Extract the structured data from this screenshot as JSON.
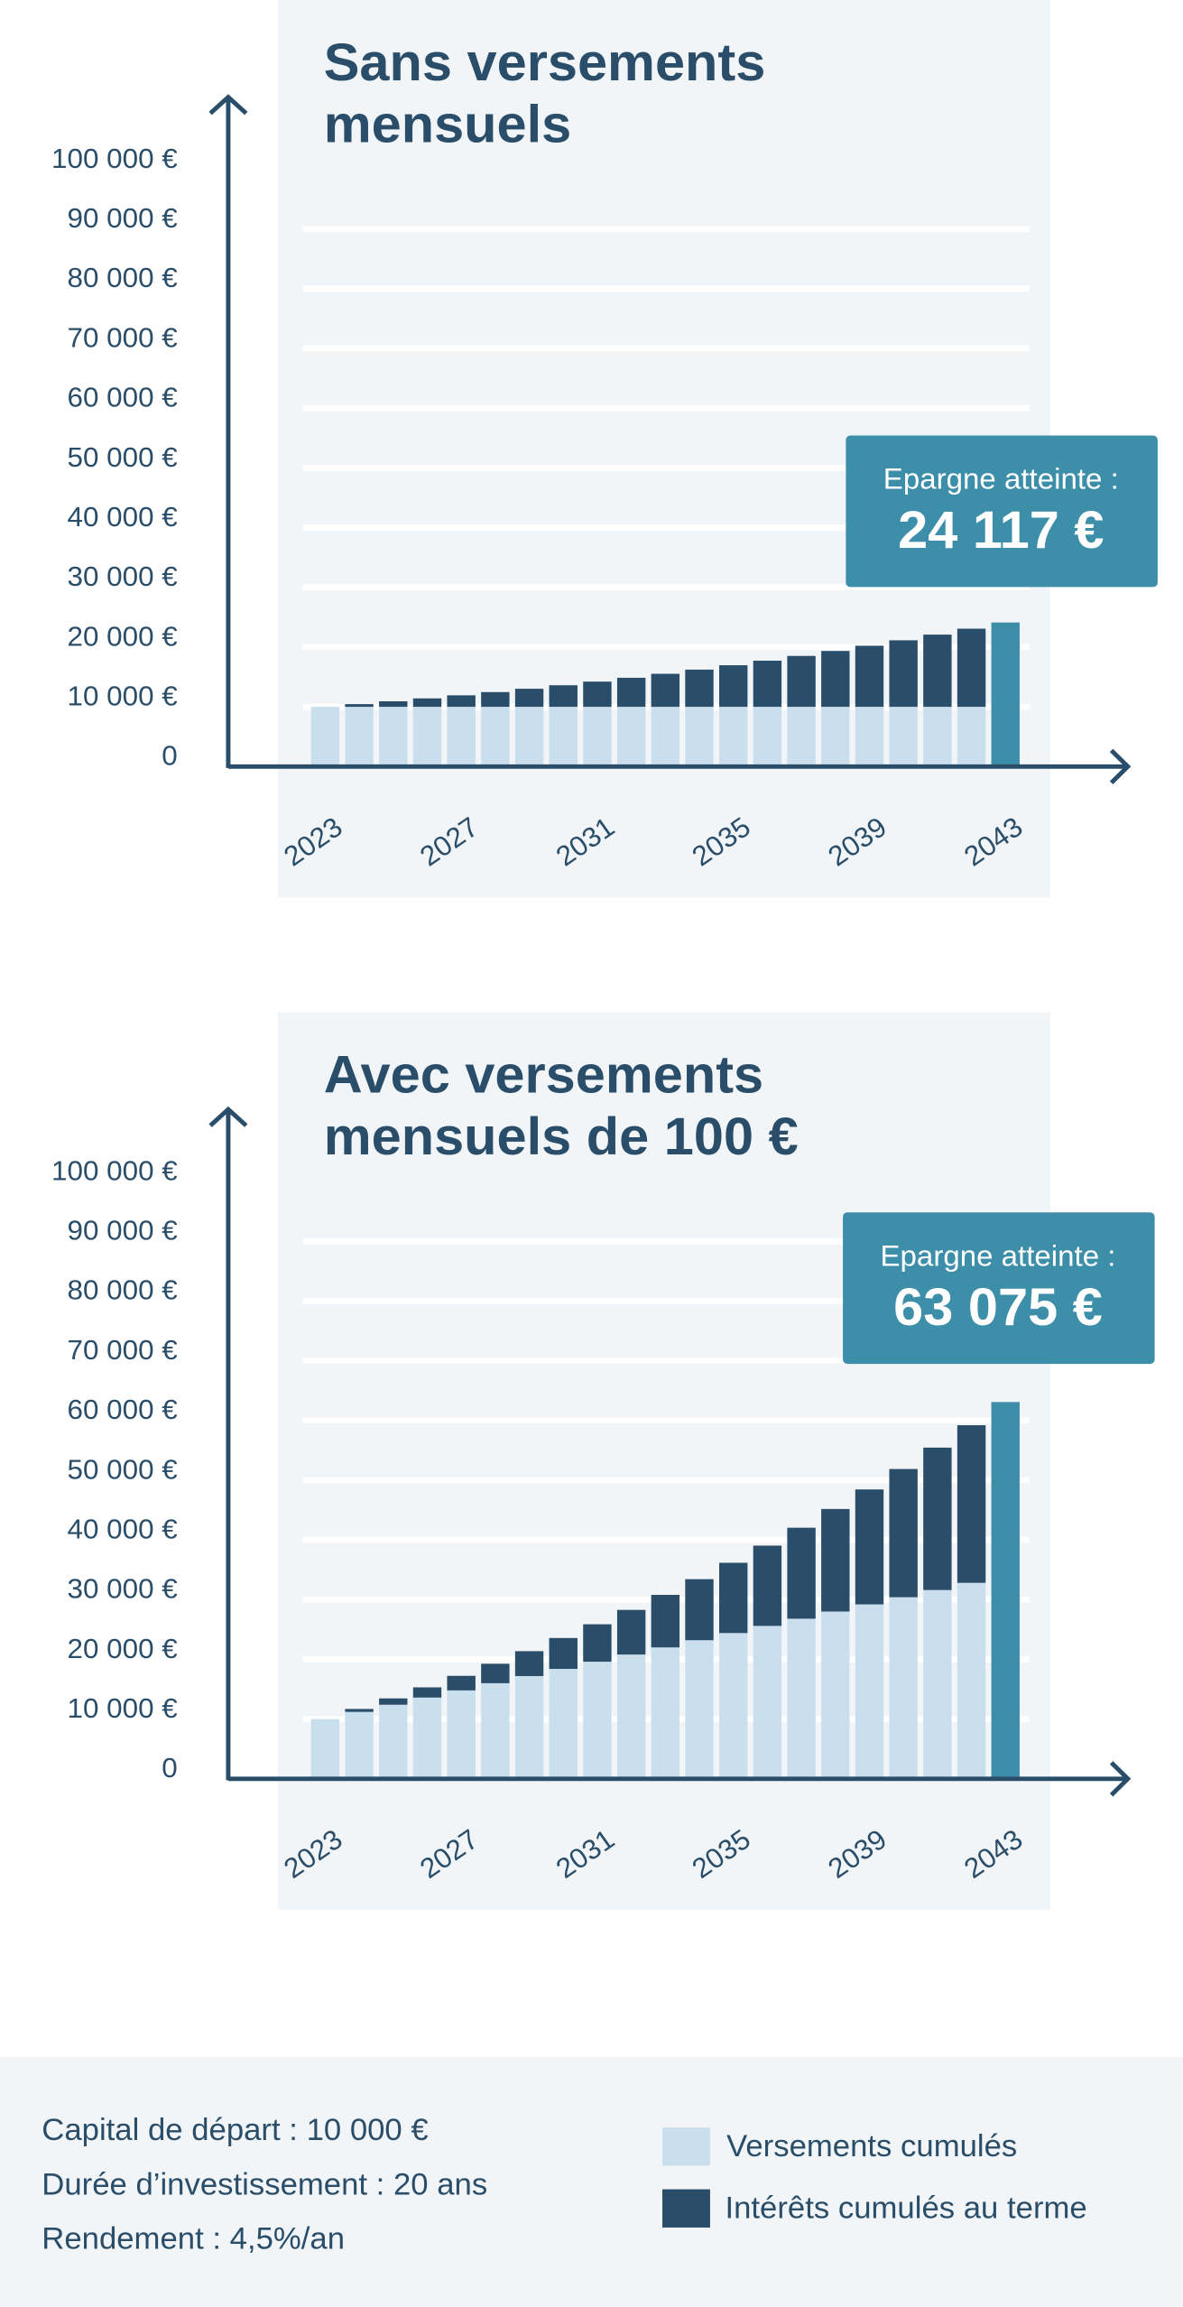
{
  "chart_data": [
    {
      "type": "stacked-bar",
      "title": [
        "Sans versements",
        "mensuels"
      ],
      "categories": [
        "2023",
        null,
        null,
        null,
        "2027",
        null,
        null,
        null,
        "2031",
        null,
        null,
        null,
        "2035",
        null,
        null,
        null,
        "2039",
        null,
        null,
        null,
        "2043"
      ],
      "series": [
        {
          "name": "Versements cumulés",
          "color": "#c9dfee",
          "values": [
            10000,
            10000,
            10000,
            10000,
            10000,
            10000,
            10000,
            10000,
            10000,
            10000,
            10000,
            10000,
            10000,
            10000,
            10000,
            10000,
            10000,
            10000,
            10000,
            10000,
            null
          ]
        },
        {
          "name": "Intérêts cumulés au terme",
          "color": "#2a4e69",
          "values": [
            0,
            450,
            920,
            1412,
            1925,
            2462,
            3023,
            3609,
            4221,
            4861,
            5530,
            6229,
            6959,
            7722,
            8519,
            9353,
            10224,
            11134,
            12086,
            13079,
            null
          ]
        }
      ],
      "annotation": {
        "label": "Epargne atteinte :",
        "value": 24117,
        "value_label": "24 117 €",
        "color": "#3d8ea9"
      },
      "ylim": [
        0,
        100000
      ],
      "yticks": [
        0,
        {
          "value": 10000,
          "label": "10 000 €"
        },
        {
          "value": 20000,
          "label": "20 000 €"
        },
        {
          "value": 30000,
          "label": "30 000 €"
        },
        {
          "value": 40000,
          "label": "40 000 €"
        },
        {
          "value": 50000,
          "label": "50 000 €"
        },
        {
          "value": 60000,
          "label": "60 000 €"
        },
        {
          "value": 70000,
          "label": "70 000 €"
        },
        {
          "value": 80000,
          "label": "80 000 €"
        },
        {
          "value": 90000,
          "label": "90 000 €"
        },
        {
          "value": 100000,
          "label": "100 000 €"
        }
      ],
      "grid": true
    },
    {
      "type": "stacked-bar",
      "title": [
        "Avec versements",
        "mensuels de 100 €"
      ],
      "categories": [
        "2023",
        null,
        null,
        null,
        "2027",
        null,
        null,
        null,
        "2031",
        null,
        null,
        null,
        "2035",
        null,
        null,
        null,
        "2039",
        null,
        null,
        null,
        "2043"
      ],
      "series": [
        {
          "name": "Versements cumulés",
          "color": "#c9dfee",
          "values": [
            10000,
            11200,
            12400,
            13600,
            14800,
            16000,
            17200,
            18400,
            19600,
            20800,
            22000,
            23200,
            24400,
            25600,
            26800,
            28000,
            29200,
            30400,
            31600,
            32800,
            null
          ]
        },
        {
          "name": "Intérêts cumulés au terme",
          "color": "#2a4e69",
          "values": [
            0,
            492,
            1059,
            1709,
            2438,
            3257,
            4166,
            5169,
            6270,
            7476,
            8792,
            10220,
            11764,
            13433,
            15230,
            17166,
            19240,
            21462,
            23841,
            26391,
            null
          ]
        }
      ],
      "annotation": {
        "label": "Epargne atteinte :",
        "value": 63075,
        "value_label": "63 075 €",
        "color": "#3d8ea9"
      },
      "ylim": [
        0,
        100000
      ],
      "yticks": [
        0,
        {
          "value": 10000,
          "label": "10 000 €"
        },
        {
          "value": 20000,
          "label": "20 000 €"
        },
        {
          "value": 30000,
          "label": "30 000 €"
        },
        {
          "value": 40000,
          "label": "40 000 €"
        },
        {
          "value": 50000,
          "label": "50 000 €"
        },
        {
          "value": 60000,
          "label": "60 000 €"
        },
        {
          "value": 70000,
          "label": "70 000 €"
        },
        {
          "value": 80000,
          "label": "80 000 €"
        },
        {
          "value": 90000,
          "label": "90 000 €"
        },
        {
          "value": 100000,
          "label": "100 000 €"
        }
      ],
      "grid": true
    }
  ],
  "footer": {
    "lines": [
      "Capital de départ : 10 000 €",
      "Durée d’investissement : 20 ans",
      "Rendement : 4,5%/an"
    ]
  }
}
